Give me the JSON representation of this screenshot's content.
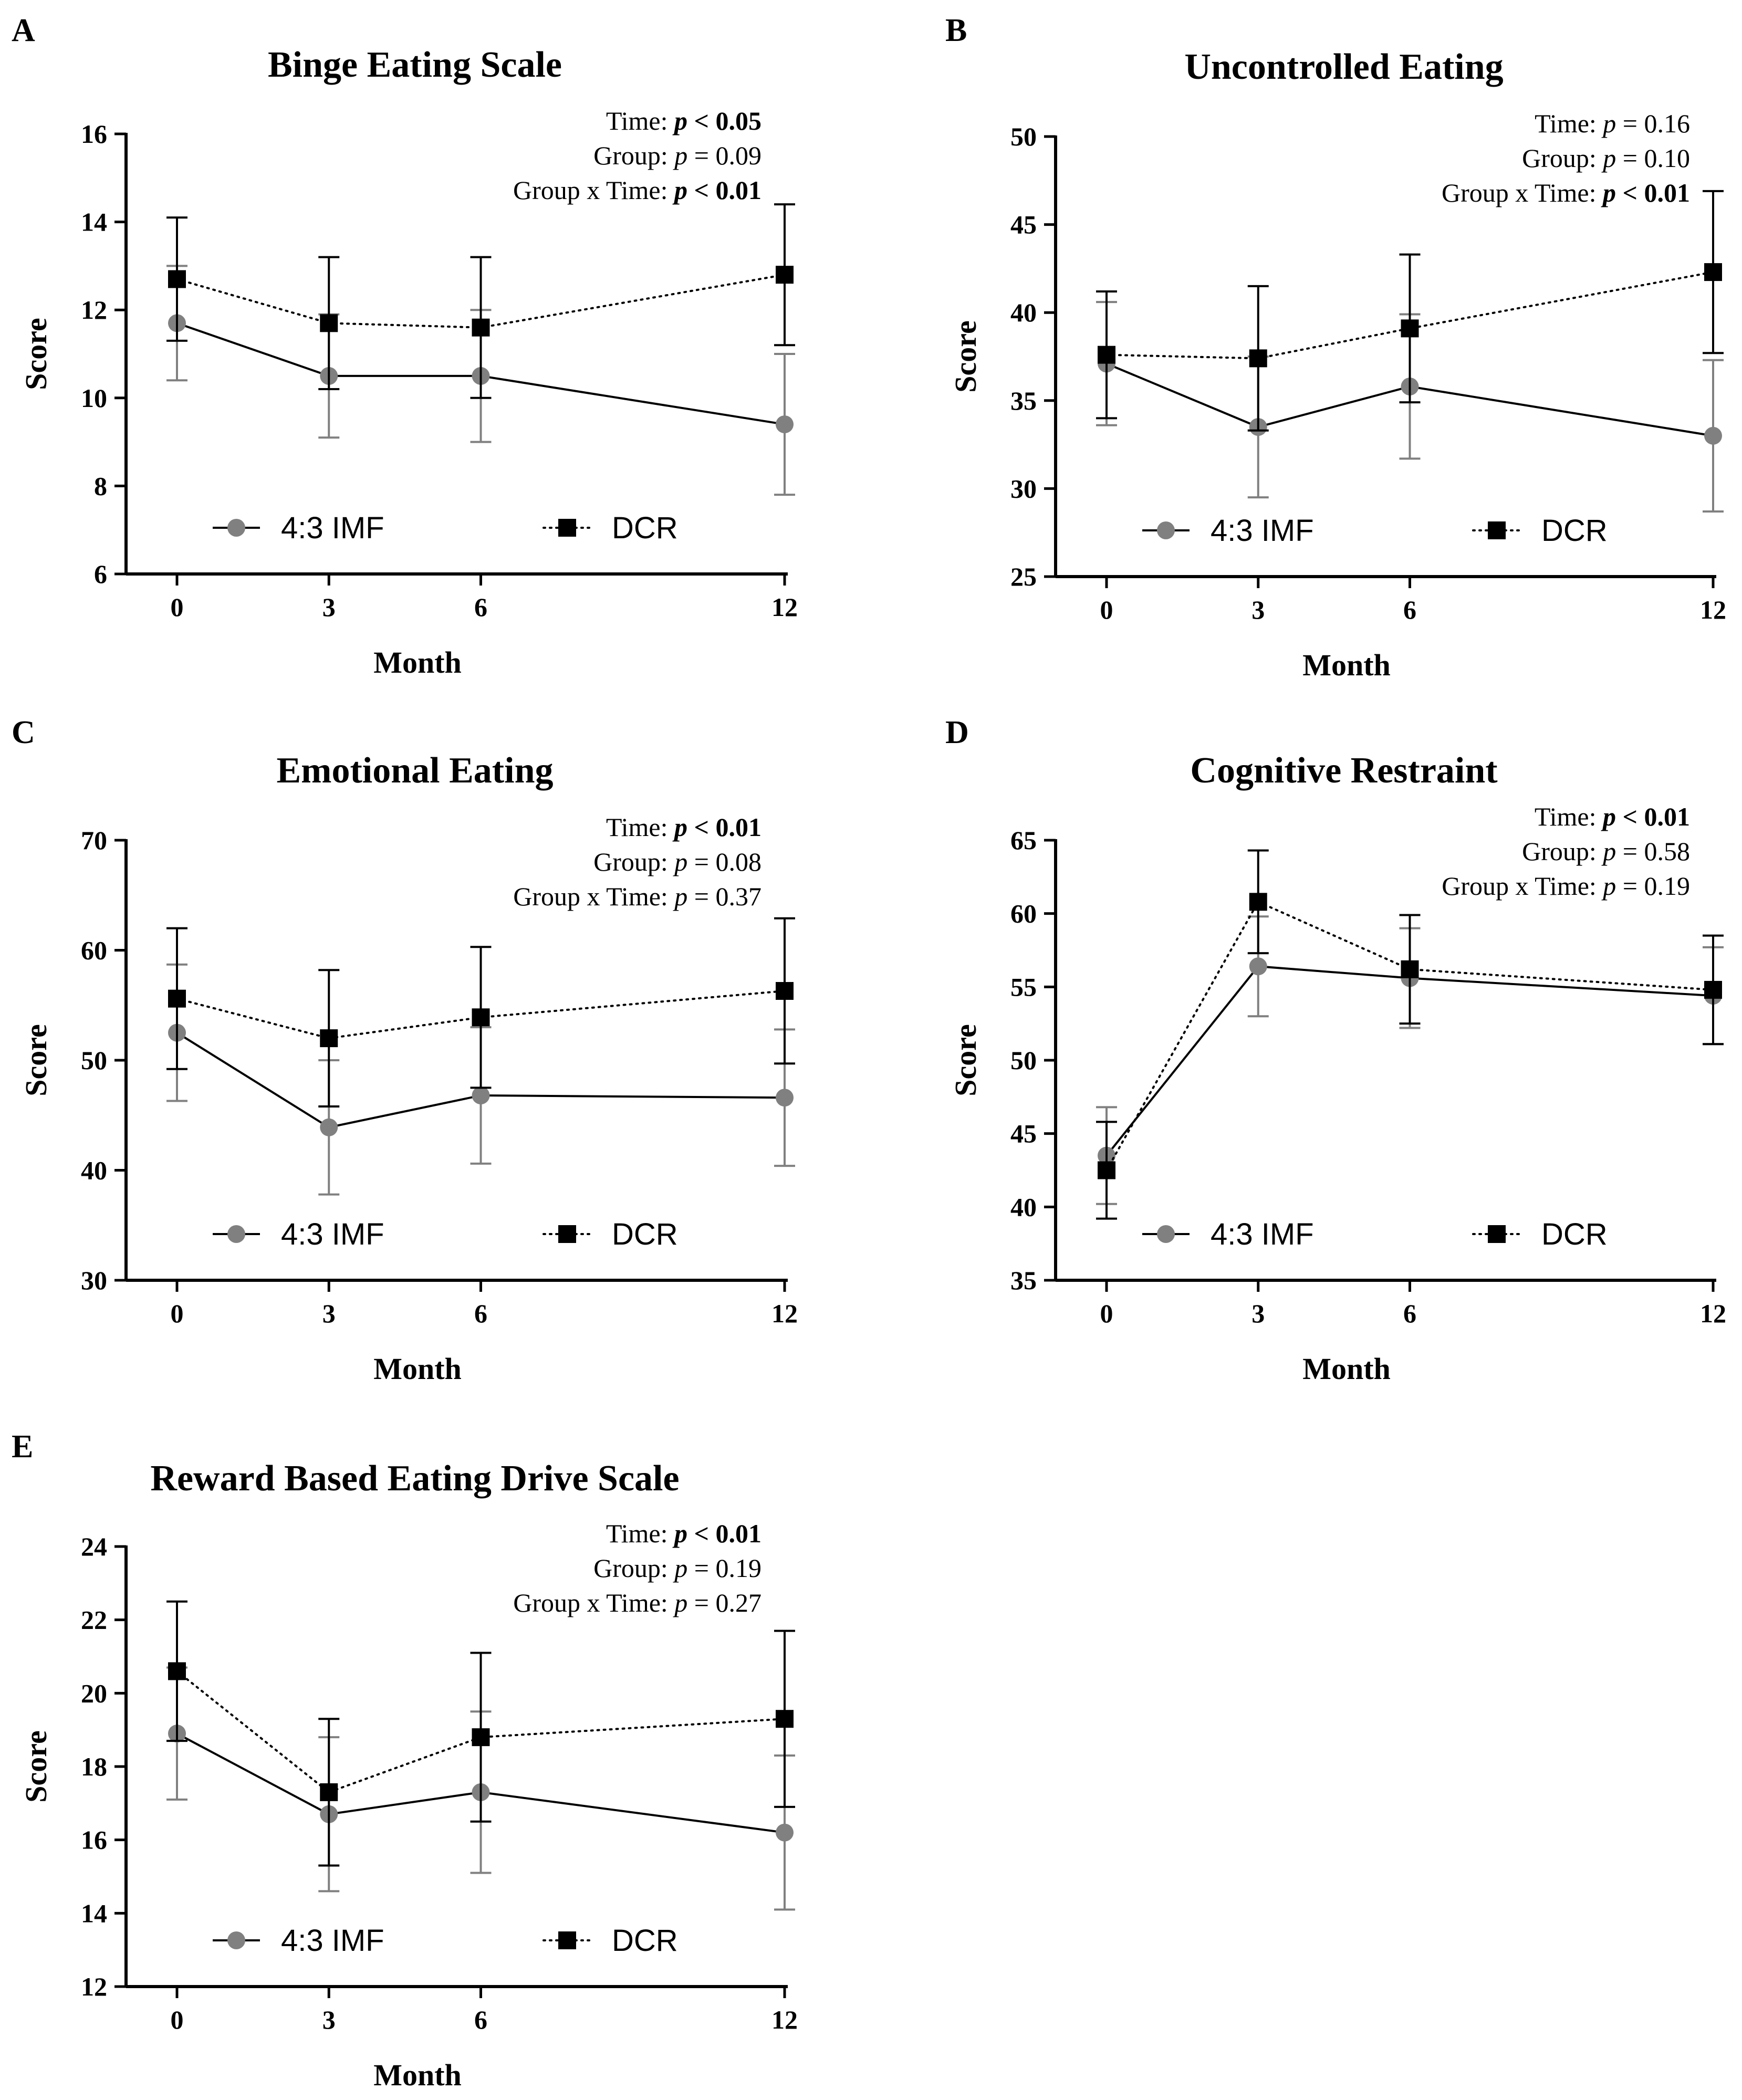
{
  "chart_data": [
    {
      "panel": "A",
      "type": "line",
      "title": "Binge Eating Scale",
      "xlabel": "Month",
      "ylabel": "Score",
      "x": [
        0,
        3,
        6,
        12
      ],
      "xticks": [
        "0",
        "3",
        "6",
        "12"
      ],
      "ylim": [
        6,
        16
      ],
      "yticks": [
        "6",
        "8",
        "10",
        "12",
        "14",
        "16"
      ],
      "stats": {
        "time": {
          "label": "Time: ",
          "p": "p",
          "op": " < 0.05",
          "bold": true
        },
        "group": {
          "label": "Group: ",
          "p": "p",
          "op": " = 0.09",
          "bold": false
        },
        "interaction": {
          "label": "Group x Time: ",
          "p": "p",
          "op": " < 0.01",
          "bold": true
        }
      },
      "series": [
        {
          "name": "4:3 IMF",
          "values": [
            11.7,
            10.5,
            10.5,
            9.4
          ],
          "err": [
            1.3,
            1.4,
            1.5,
            1.6
          ]
        },
        {
          "name": "DCR",
          "values": [
            12.7,
            11.7,
            11.6,
            12.8
          ],
          "err": [
            1.4,
            1.5,
            1.6,
            1.6
          ]
        }
      ]
    },
    {
      "panel": "B",
      "type": "line",
      "title": "Uncontrolled Eating",
      "xlabel": "Month",
      "ylabel": "Score",
      "x": [
        0,
        3,
        6,
        12
      ],
      "xticks": [
        "0",
        "3",
        "6",
        "12"
      ],
      "ylim": [
        25,
        50
      ],
      "yticks": [
        "25",
        "30",
        "35",
        "40",
        "45",
        "50"
      ],
      "stats": {
        "time": {
          "label": "Time: ",
          "p": "p",
          "op": " = 0.16",
          "bold": false
        },
        "group": {
          "label": "Group: ",
          "p": "p",
          "op": " = 0.10",
          "bold": false
        },
        "interaction": {
          "label": "Group x Time: ",
          "p": "p",
          "op": " < 0.01",
          "bold": true
        }
      },
      "series": [
        {
          "name": "4:3 IMF",
          "values": [
            37.1,
            33.5,
            35.8,
            33.0
          ],
          "err": [
            3.5,
            4.0,
            4.1,
            4.3
          ]
        },
        {
          "name": "DCR",
          "values": [
            37.6,
            37.4,
            39.1,
            42.3
          ],
          "err": [
            3.6,
            4.1,
            4.2,
            4.6
          ]
        }
      ]
    },
    {
      "panel": "C",
      "type": "line",
      "title": "Emotional Eating",
      "xlabel": "Month",
      "ylabel": "Score",
      "x": [
        0,
        3,
        6,
        12
      ],
      "xticks": [
        "0",
        "3",
        "6",
        "12"
      ],
      "ylim": [
        30,
        70
      ],
      "yticks": [
        "30",
        "40",
        "50",
        "60",
        "70"
      ],
      "stats": {
        "time": {
          "label": "Time: ",
          "p": "p",
          "op": " < 0.01",
          "bold": true
        },
        "group": {
          "label": "Group: ",
          "p": "p",
          "op": " = 0.08",
          "bold": false
        },
        "interaction": {
          "label": "Group x Time: ",
          "p": "p",
          "op": " = 0.37",
          "bold": false
        }
      },
      "series": [
        {
          "name": "4:3 IMF",
          "values": [
            52.5,
            43.9,
            46.8,
            46.6
          ],
          "err": [
            6.2,
            6.1,
            6.2,
            6.2
          ]
        },
        {
          "name": "DCR",
          "values": [
            55.6,
            52.0,
            53.9,
            56.3
          ],
          "err": [
            6.4,
            6.2,
            6.4,
            6.6
          ]
        }
      ]
    },
    {
      "panel": "D",
      "type": "line",
      "title": "Cognitive Restraint",
      "xlabel": "Month",
      "ylabel": "Score",
      "x": [
        0,
        3,
        6,
        12
      ],
      "xticks": [
        "0",
        "3",
        "6",
        "12"
      ],
      "ylim": [
        35,
        65
      ],
      "yticks": [
        "35",
        "40",
        "45",
        "50",
        "55",
        "60",
        "65"
      ],
      "stats": {
        "time": {
          "label": "Time: ",
          "p": "p",
          "op": " < 0.01",
          "bold": true
        },
        "group": {
          "label": "Group: ",
          "p": "p",
          "op": " = 0.58",
          "bold": false
        },
        "interaction": {
          "label": "Group x Time: ",
          "p": "p",
          "op": " = 0.19",
          "bold": false
        }
      },
      "series": [
        {
          "name": "4:3 IMF",
          "values": [
            43.5,
            56.4,
            55.6,
            54.4
          ],
          "err": [
            3.3,
            3.4,
            3.4,
            3.3
          ]
        },
        {
          "name": "DCR",
          "values": [
            42.5,
            60.8,
            56.2,
            54.8
          ],
          "err": [
            3.3,
            3.5,
            3.7,
            3.7
          ]
        }
      ]
    },
    {
      "panel": "E",
      "type": "line",
      "title": "Reward Based Eating Drive Scale",
      "xlabel": "Month",
      "ylabel": "Score",
      "x": [
        0,
        3,
        6,
        12
      ],
      "xticks": [
        "0",
        "3",
        "6",
        "12"
      ],
      "ylim": [
        12,
        24
      ],
      "yticks": [
        "12",
        "14",
        "16",
        "18",
        "20",
        "22",
        "24"
      ],
      "stats": {
        "time": {
          "label": "Time: ",
          "p": "p",
          "op": " < 0.01",
          "bold": true
        },
        "group": {
          "label": "Group: ",
          "p": "p",
          "op": " = 0.19",
          "bold": false
        },
        "interaction": {
          "label": "Group x Time: ",
          "p": "p",
          "op": " = 0.27",
          "bold": false
        }
      },
      "series": [
        {
          "name": "4:3 IMF",
          "values": [
            18.9,
            16.7,
            17.3,
            16.2
          ],
          "err": [
            1.8,
            2.1,
            2.2,
            2.1
          ]
        },
        {
          "name": "DCR",
          "values": [
            20.6,
            17.3,
            18.8,
            19.3
          ],
          "err": [
            1.9,
            2.0,
            2.3,
            2.4
          ]
        }
      ]
    }
  ],
  "colors": {
    "imf": "#808080",
    "dcr": "#000000",
    "axis": "#000000"
  }
}
